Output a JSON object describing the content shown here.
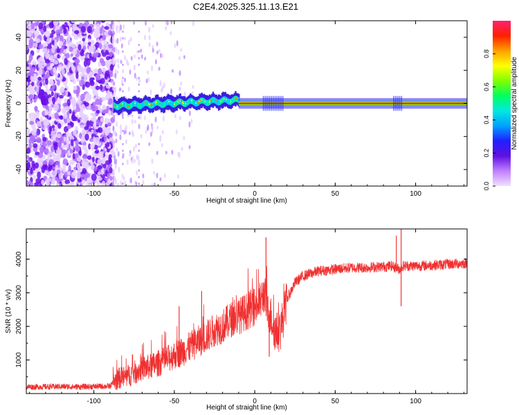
{
  "title": "C2E4.2025.325.11.13.E21",
  "chart_data": [
    {
      "type": "heatmap",
      "name": "spectrogram",
      "xlabel": "Height of straight line (km)",
      "ylabel": "Frequency (Hz)",
      "xlim": [
        -142,
        132
      ],
      "ylim": [
        -50,
        50
      ],
      "xticks": [
        -100,
        -50,
        0,
        50,
        100
      ],
      "xtick_labels": [
        "-100",
        "-50",
        "0",
        "50",
        "100"
      ],
      "yticks": [
        -40,
        -20,
        0,
        20,
        40
      ],
      "ytick_labels": [
        "-40",
        "-20",
        "0",
        "20",
        "40"
      ],
      "colorbar": {
        "label": "Normalized spectral amplitude",
        "range": [
          0,
          1
        ],
        "ticks": [
          0.0,
          0.2,
          0.4,
          0.6,
          0.8
        ],
        "tick_labels": [
          "0.0",
          "0.2",
          "0.4",
          "0.6",
          "0.8"
        ],
        "colormap": [
          "#f0e0ff",
          "#c080ff",
          "#6010e0",
          "#2020ff",
          "#00a0ff",
          "#00e8e0",
          "#00ff60",
          "#80ff00",
          "#ffff00",
          "#ffa000",
          "#ff2000",
          "#ff2070"
        ]
      },
      "regions": [
        {
          "x": [
            -142,
            -88
          ],
          "description": "broadband noise",
          "amplitude": 0.15
        },
        {
          "x": [
            -88,
            -10
          ],
          "description": "carrier near 0 Hz, wandering",
          "freq_hz": [
            -4,
            4
          ],
          "amplitude": 0.5
        },
        {
          "x": [
            -10,
            132
          ],
          "description": "steady carrier at 0 Hz",
          "freq_hz": [
            0,
            0
          ],
          "amplitude": 1.0
        }
      ]
    },
    {
      "type": "line",
      "name": "snr",
      "xlabel": "Height of straight line (km)",
      "ylabel": "SNR (10 * v/v)",
      "xlim": [
        -142,
        132
      ],
      "ylim": [
        0,
        4900
      ],
      "xticks": [
        -100,
        -50,
        0,
        50,
        100
      ],
      "xtick_labels": [
        "-100",
        "-50",
        "0",
        "50",
        "100"
      ],
      "yticks": [
        1000,
        2000,
        3000,
        4000
      ],
      "ytick_labels": [
        "1000",
        "2000",
        "3000",
        "4000"
      ],
      "color": "#f03030",
      "series": [
        {
          "x": [
            -142,
            -130,
            -120,
            -110,
            -100,
            -90,
            -85,
            -80,
            -75,
            -70,
            -65,
            -60,
            -55,
            -50,
            -45,
            -40,
            -35,
            -30,
            -25,
            -20,
            -15,
            -10,
            -5,
            0,
            3,
            6,
            8,
            10,
            13,
            16,
            20,
            25,
            30,
            40,
            50,
            60,
            70,
            80,
            85,
            90,
            92,
            95,
            100,
            110,
            120,
            132
          ],
          "y": [
            200,
            200,
            210,
            200,
            210,
            220,
            450,
            500,
            620,
            750,
            800,
            900,
            1000,
            1150,
            1250,
            1400,
            1550,
            1700,
            1900,
            2000,
            2200,
            2300,
            2450,
            2600,
            2700,
            3000,
            2400,
            2300,
            1800,
            1900,
            2800,
            3300,
            3500,
            3650,
            3700,
            3750,
            3750,
            3780,
            3800,
            3700,
            3800,
            3800,
            3800,
            3820,
            3850,
            3880
          ]
        }
      ],
      "spikes": [
        {
          "x": -33,
          "y": 3050
        },
        {
          "x": -47,
          "y": 2600
        },
        {
          "x": 7,
          "y": 4650
        },
        {
          "x": 9,
          "y": 1100
        },
        {
          "x": 88,
          "y": 4700
        },
        {
          "x": 91,
          "y": 4900
        },
        {
          "x": 91,
          "y": 2600
        }
      ]
    }
  ]
}
